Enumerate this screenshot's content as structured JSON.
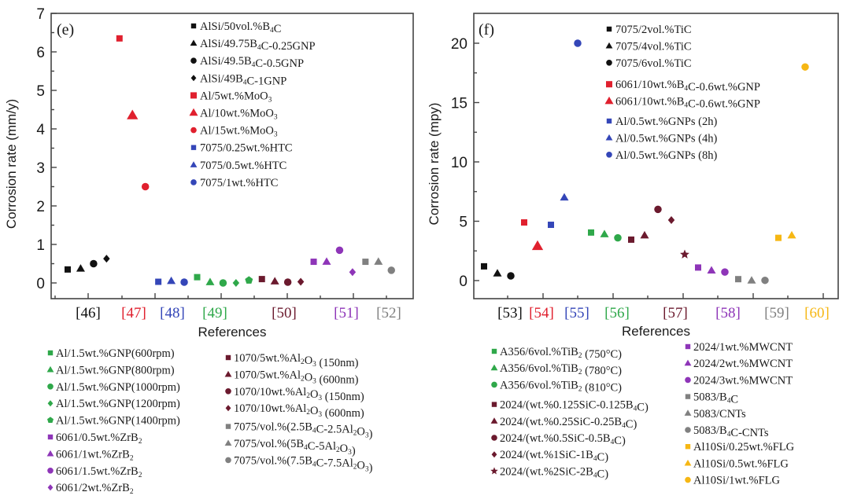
{
  "chart_data": [
    {
      "type": "scatter",
      "panel": "(e)",
      "title": "",
      "xlabel": "References",
      "ylabel": "Corrosion rate (mm/y)",
      "ylim": [
        -0.4,
        7
      ],
      "yticks": [
        0,
        1,
        2,
        3,
        4,
        5,
        6,
        7
      ],
      "grid": false,
      "groups": [
        {
          "ref": "[46]",
          "color": "#111111",
          "points": [
            {
              "label": "AlSi/50vol.%B4C",
              "marker": "square",
              "y": 0.35
            },
            {
              "label": "AlSi/49.75B4C-0.25GNP",
              "marker": "triangle",
              "y": 0.37
            },
            {
              "label": "AlSi/49.5B4C-0.5GNP",
              "marker": "circle",
              "y": 0.5
            },
            {
              "label": "AlSi/49B4C-1GNP",
              "marker": "diamond",
              "y": 0.63
            }
          ]
        },
        {
          "ref": "[47]",
          "color": "#e0202e",
          "points": [
            {
              "label": "Al/5wt.%MoO3",
              "marker": "square",
              "y": 6.35
            },
            {
              "label": "Al/10wt.%MoO3",
              "marker": "triangle",
              "y": 4.35
            },
            {
              "label": "Al/15wt.%MoO3",
              "marker": "circle",
              "y": 2.5
            }
          ]
        },
        {
          "ref": "[48]",
          "color": "#3446b8",
          "points": [
            {
              "label": "7075/0.25wt.%HTC",
              "marker": "square",
              "y": 0.03
            },
            {
              "label": "7075/0.5wt.%HTC",
              "marker": "triangle",
              "y": 0.05
            },
            {
              "label": "7075/1wt.%HTC",
              "marker": "circle",
              "y": 0.02
            }
          ]
        },
        {
          "ref": "[49]",
          "color": "#2fa84a",
          "points": [
            {
              "label": "Al/1.5wt.%GNP(600rpm)",
              "marker": "square",
              "y": 0.15
            },
            {
              "label": "Al/1.5wt.%GNP(800rpm)",
              "marker": "triangle",
              "y": 0.02
            },
            {
              "label": "Al/1.5wt.%GNP(1000rpm)",
              "marker": "circle",
              "y": 0.0
            },
            {
              "label": "Al/1.5wt.%GNP(1200rpm)",
              "marker": "diamond",
              "y": 0.0
            },
            {
              "label": "Al/1.5wt.%GNP(1400rpm)",
              "marker": "pentagon",
              "y": 0.07
            }
          ]
        },
        {
          "ref": "[50]",
          "color": "#6b1a2e",
          "points": [
            {
              "label": "1070/5wt.%Al2O3 (150nm)",
              "marker": "square",
              "y": 0.1
            },
            {
              "label": "1070/5wt.%Al2O3 (600nm)",
              "marker": "triangle",
              "y": 0.04
            },
            {
              "label": "1070/10wt.%Al2O3 (150nm)",
              "marker": "circle",
              "y": 0.02
            },
            {
              "label": "1070/10wt.%Al2O3 (600nm)",
              "marker": "diamond",
              "y": 0.03
            }
          ]
        },
        {
          "ref": "[51]",
          "color": "#8e35b8",
          "points": [
            {
              "label": "6061/0.5wt.%ZrB2",
              "marker": "square",
              "y": 0.55
            },
            {
              "label": "6061/1wt.%ZrB2",
              "marker": "triangle",
              "y": 0.55
            },
            {
              "label": "6061/1.5wt.%ZrB2",
              "marker": "circle",
              "y": 0.85
            },
            {
              "label": "6061/2wt.%ZrB2",
              "marker": "diamond",
              "y": 0.28
            }
          ]
        },
        {
          "ref": "[52]",
          "color": "#808080",
          "points": [
            {
              "label": "7075/vol.%(2.5B4C-2.5Al2O3)",
              "marker": "square",
              "y": 0.55
            },
            {
              "label": "7075/vol.%(5B4C-5Al2O3)",
              "marker": "triangle",
              "y": 0.55
            },
            {
              "label": "7075/vol.%(7.5B4C-7.5Al2O3)",
              "marker": "circle",
              "y": 0.33
            }
          ]
        }
      ],
      "inner_legend": [
        {
          "label": "AlSi/50vol.%B4C",
          "marker": "square",
          "color": "#111111"
        },
        {
          "label": "AlSi/49.75B4C-0.25GNP",
          "marker": "triangle",
          "color": "#111111"
        },
        {
          "label": "AlSi/49.5B4C-0.5GNP",
          "marker": "circle",
          "color": "#111111"
        },
        {
          "label": "AlSi/49B4C-1GNP",
          "marker": "diamond",
          "color": "#111111"
        },
        {
          "label": "Al/5wt.%MoO3",
          "marker": "square",
          "color": "#e0202e"
        },
        {
          "label": "Al/10wt.%MoO3",
          "marker": "triangle",
          "color": "#e0202e"
        },
        {
          "label": "Al/15wt.%MoO3",
          "marker": "circle",
          "color": "#e0202e"
        },
        {
          "label": "7075/0.25wt.%HTC",
          "marker": "square",
          "color": "#3446b8"
        },
        {
          "label": "7075/0.5wt.%HTC",
          "marker": "triangle",
          "color": "#3446b8"
        },
        {
          "label": "7075/1wt.%HTC",
          "marker": "circle",
          "color": "#3446b8"
        }
      ],
      "bottom_legend_col1": [
        {
          "label": "Al/1.5wt.%GNP(600rpm)",
          "marker": "square",
          "color": "#2fa84a"
        },
        {
          "label": "Al/1.5wt.%GNP(800rpm)",
          "marker": "triangle",
          "color": "#2fa84a"
        },
        {
          "label": "Al/1.5wt.%GNP(1000rpm)",
          "marker": "circle",
          "color": "#2fa84a"
        },
        {
          "label": "Al/1.5wt.%GNP(1200rpm)",
          "marker": "diamond",
          "color": "#2fa84a"
        },
        {
          "label": "Al/1.5wt.%GNP(1400rpm)",
          "marker": "pentagon",
          "color": "#2fa84a"
        },
        {
          "label": "6061/0.5wt.%ZrB2",
          "marker": "square",
          "color": "#8e35b8"
        },
        {
          "label": "6061/1wt.%ZrB2",
          "marker": "triangle",
          "color": "#8e35b8"
        },
        {
          "label": "6061/1.5wt.%ZrB2",
          "marker": "circle",
          "color": "#8e35b8"
        },
        {
          "label": "6061/2wt.%ZrB2",
          "marker": "diamond",
          "color": "#8e35b8"
        }
      ],
      "bottom_legend_col2": [
        {
          "label": "1070/5wt.%Al2O3 (150nm)",
          "marker": "square",
          "color": "#6b1a2e"
        },
        {
          "label": "1070/5wt.%Al2O3 (600nm)",
          "marker": "triangle",
          "color": "#6b1a2e"
        },
        {
          "label": "1070/10wt.%Al2O3 (150nm)",
          "marker": "circle",
          "color": "#6b1a2e"
        },
        {
          "label": "1070/10wt.%Al2O3 (600nm)",
          "marker": "diamond",
          "color": "#6b1a2e"
        },
        {
          "label": "7075/vol.%(2.5B4C-2.5Al2O3)",
          "marker": "square",
          "color": "#808080"
        },
        {
          "label": "7075/vol.%(5B4C-5Al2O3)",
          "marker": "triangle",
          "color": "#808080"
        },
        {
          "label": "7075/vol.%(7.5B4C-7.5Al2O3)",
          "marker": "circle",
          "color": "#808080"
        }
      ]
    },
    {
      "type": "scatter",
      "panel": "(f)",
      "title": "",
      "xlabel": "References",
      "ylabel": "Corrosion rate (mpy)",
      "ylim": [
        -1.5,
        21.5
      ],
      "yticks": [
        0,
        5,
        10,
        15,
        20
      ],
      "grid": false,
      "groups": [
        {
          "ref": "[53]",
          "color": "#111111",
          "points": [
            {
              "label": "7075/2vol.%TiC",
              "marker": "square",
              "y": 1.2
            },
            {
              "label": "7075/4vol.%TiC",
              "marker": "triangle",
              "y": 0.6
            },
            {
              "label": "7075/6vol.%TiC",
              "marker": "circle",
              "y": 0.4
            }
          ]
        },
        {
          "ref": "[54]",
          "color": "#e0202e",
          "points": [
            {
              "label": "6061/10wt.%B4C-0.6wt.%GNP",
              "marker": "square",
              "y": 4.9
            },
            {
              "label": "6061/10wt.%B4C-0.6wt.%GNP",
              "marker": "triangle",
              "y": 2.9
            }
          ]
        },
        {
          "ref": "[55]",
          "color": "#3446b8",
          "points": [
            {
              "label": "Al/0.5wt.%GNPs (2h)",
              "marker": "square",
              "y": 4.7
            },
            {
              "label": "Al/0.5wt.%GNPs (4h)",
              "marker": "triangle",
              "y": 7.0
            },
            {
              "label": "Al/0.5wt.%GNPs (8h)",
              "marker": "circle",
              "y": 20.0
            }
          ]
        },
        {
          "ref": "[56]",
          "color": "#2fa84a",
          "points": [
            {
              "label": "A356/6vol.%TiB2 (750°C)",
              "marker": "square",
              "y": 4.05
            },
            {
              "label": "A356/6vol.%TiB2 (780°C)",
              "marker": "triangle",
              "y": 3.9
            },
            {
              "label": "A356/6vol.%TiB2 (810°C)",
              "marker": "circle",
              "y": 3.6
            }
          ]
        },
        {
          "ref": "[57]",
          "color": "#6b1a2e",
          "points": [
            {
              "label": "2024/(wt.%0.125SiC-0.125B4C)",
              "marker": "square",
              "y": 3.45
            },
            {
              "label": "2024/(wt.%0.25SiC-0.25B4C)",
              "marker": "triangle",
              "y": 3.8
            },
            {
              "label": "2024/(wt.%0.5SiC-0.5B4C)",
              "marker": "circle",
              "y": 6.0
            },
            {
              "label": "2024/(wt.%1SiC-1B4C)",
              "marker": "diamond",
              "y": 5.1
            },
            {
              "label": "2024/(wt.%2SiC-2B4C)",
              "marker": "star",
              "y": 2.2
            }
          ]
        },
        {
          "ref": "[58]",
          "color": "#8e35b8",
          "points": [
            {
              "label": "2024/1wt.%MWCNT",
              "marker": "square",
              "y": 1.1
            },
            {
              "label": "2024/2wt.%MWCNT",
              "marker": "triangle",
              "y": 0.85
            },
            {
              "label": "2024/3wt.%MWCNT",
              "marker": "circle",
              "y": 0.72
            }
          ]
        },
        {
          "ref": "[59]",
          "color": "#808080",
          "points": [
            {
              "label": "5083/B4C",
              "marker": "square",
              "y": 0.12
            },
            {
              "label": "5083/CNTs",
              "marker": "triangle",
              "y": 0.0
            },
            {
              "label": "5083/B4C-CNTs",
              "marker": "circle",
              "y": 0.02
            }
          ]
        },
        {
          "ref": "[60]",
          "color": "#f6b714",
          "points": [
            {
              "label": "Al10Si/0.25wt.%FLG",
              "marker": "square",
              "y": 3.6
            },
            {
              "label": "Al10Si/0.5wt.%FLG",
              "marker": "triangle",
              "y": 3.8
            },
            {
              "label": "Al10Si/1wt.%FLG",
              "marker": "circle",
              "y": 18.0
            }
          ]
        }
      ],
      "inner_legend": [
        {
          "label": "7075/2vol.%TiC",
          "marker": "square",
          "color": "#111111"
        },
        {
          "label": "7075/4vol.%TiC",
          "marker": "triangle",
          "color": "#111111"
        },
        {
          "label": "7075/6vol.%TiC",
          "marker": "circle",
          "color": "#111111"
        },
        {
          "label": "6061/10wt.%B4C-0.6wt.%GNP",
          "marker": "square",
          "color": "#e0202e"
        },
        {
          "label": "6061/10wt.%B4C-0.6wt.%GNP",
          "marker": "triangle",
          "color": "#e0202e"
        },
        {
          "label": "Al/0.5wt.%GNPs (2h)",
          "marker": "square",
          "color": "#3446b8"
        },
        {
          "label": "Al/0.5wt.%GNPs (4h)",
          "marker": "triangle",
          "color": "#3446b8"
        },
        {
          "label": "Al/0.5wt.%GNPs (8h)",
          "marker": "circle",
          "color": "#3446b8"
        }
      ],
      "bottom_legend_col1": [
        {
          "label": "A356/6vol.%TiB2 (750°C)",
          "marker": "square",
          "color": "#2fa84a"
        },
        {
          "label": "A356/6vol.%TiB2 (780°C)",
          "marker": "triangle",
          "color": "#2fa84a"
        },
        {
          "label": "A356/6vol.%TiB2 (810°C)",
          "marker": "circle",
          "color": "#2fa84a"
        },
        {
          "label": "2024/(wt.%0.125SiC-0.125B4C)",
          "marker": "square",
          "color": "#6b1a2e"
        },
        {
          "label": "2024/(wt.%0.25SiC-0.25B4C)",
          "marker": "triangle",
          "color": "#6b1a2e"
        },
        {
          "label": "2024/(wt.%0.5SiC-0.5B4C)",
          "marker": "circle",
          "color": "#6b1a2e"
        },
        {
          "label": "2024/(wt.%1SiC-1B4C)",
          "marker": "diamond",
          "color": "#6b1a2e"
        },
        {
          "label": "2024/(wt.%2SiC-2B4C)",
          "marker": "star",
          "color": "#6b1a2e"
        }
      ],
      "bottom_legend_col2": [
        {
          "label": "2024/1wt.%MWCNT",
          "marker": "square",
          "color": "#8e35b8"
        },
        {
          "label": "2024/2wt.%MWCNT",
          "marker": "triangle",
          "color": "#8e35b8"
        },
        {
          "label": "2024/3wt.%MWCNT",
          "marker": "circle",
          "color": "#8e35b8"
        },
        {
          "label": "5083/B4C",
          "marker": "square",
          "color": "#808080"
        },
        {
          "label": "5083/CNTs",
          "marker": "triangle",
          "color": "#808080"
        },
        {
          "label": "5083/B4C-CNTs",
          "marker": "circle",
          "color": "#808080"
        },
        {
          "label": "Al10Si/0.25wt.%FLG",
          "marker": "square",
          "color": "#f6b714"
        },
        {
          "label": "Al10Si/0.5wt.%FLG",
          "marker": "triangle",
          "color": "#f6b714"
        },
        {
          "label": "Al10Si/1wt.%FLG",
          "marker": "circle",
          "color": "#f6b714"
        }
      ]
    }
  ]
}
